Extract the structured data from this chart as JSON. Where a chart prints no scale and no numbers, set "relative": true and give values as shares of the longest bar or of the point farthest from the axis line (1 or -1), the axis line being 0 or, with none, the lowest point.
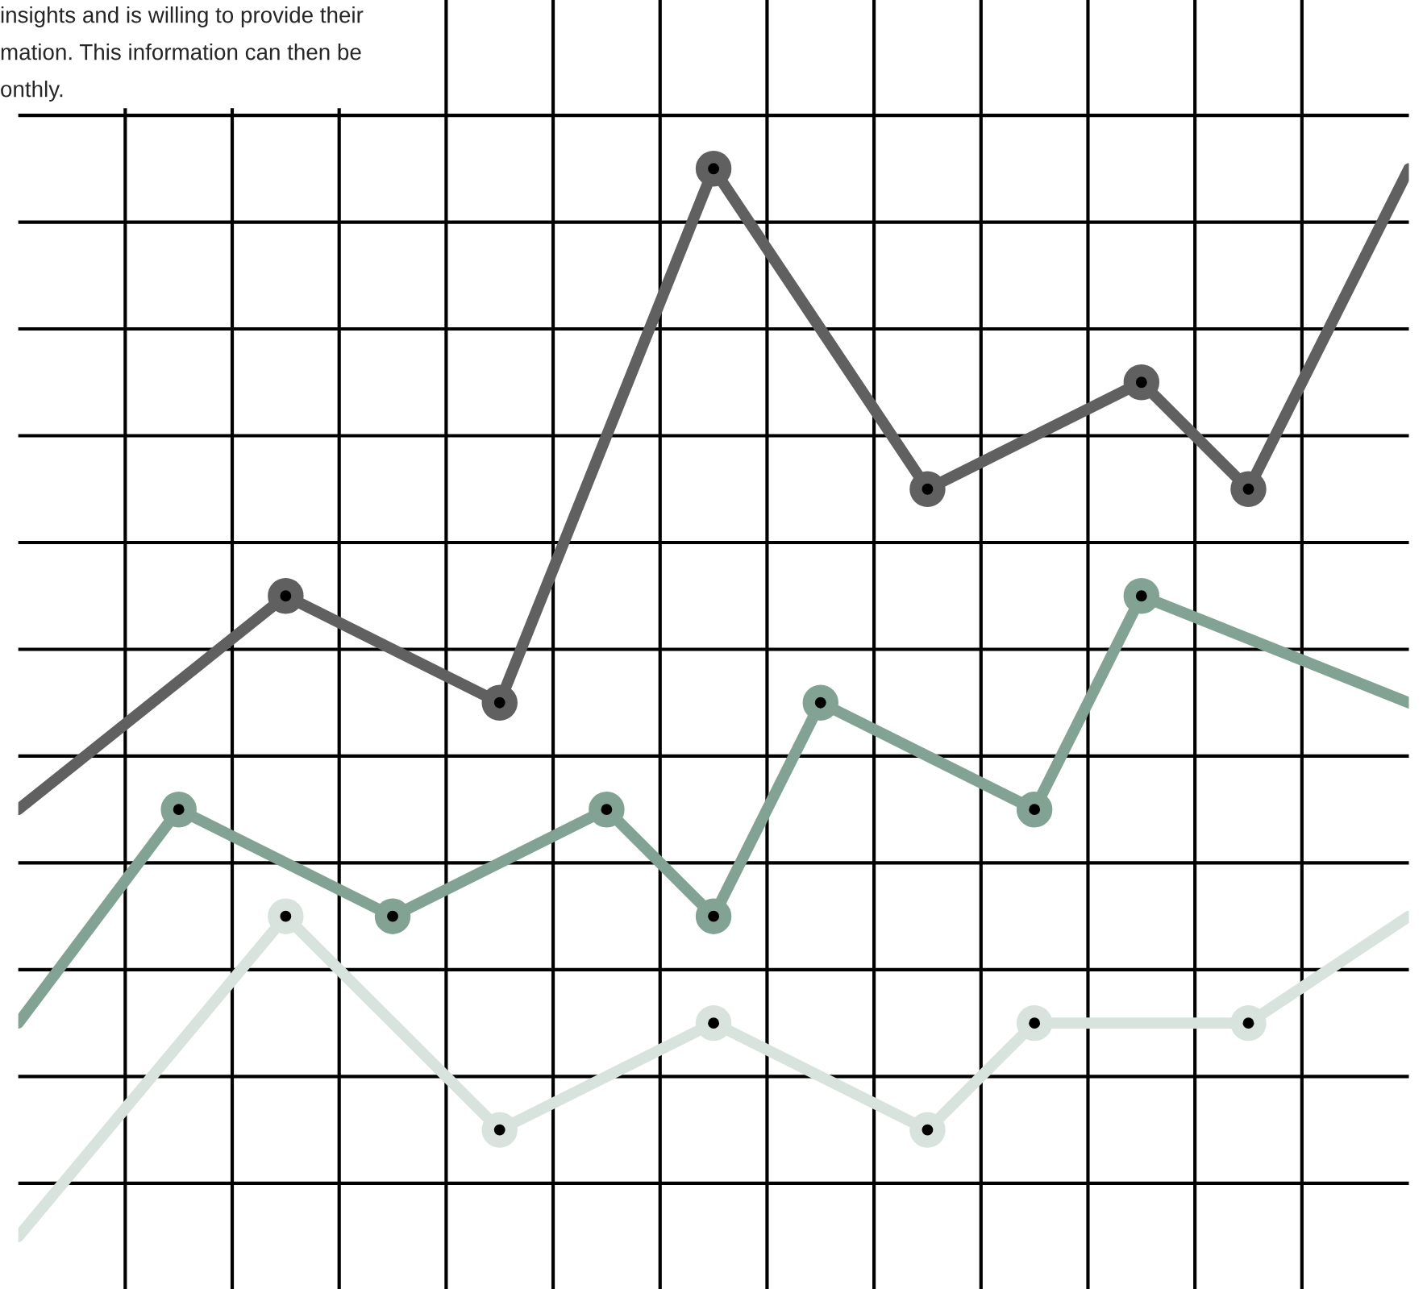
{
  "chart_data": {
    "type": "line",
    "relative": true,
    "grid": true,
    "marker": "circle",
    "line_style": "solid",
    "categories": [
      null,
      null,
      null,
      null,
      null,
      null,
      null,
      null,
      null,
      null,
      null,
      null,
      null,
      null,
      null,
      null,
      null,
      null,
      null,
      null,
      null,
      null,
      null,
      null,
      null,
      null,
      null
    ],
    "annotations": [
      "insights and is willing to provide their\nmation. This information can then be\nonthly."
    ],
    "series": [
      {
        "color": "#606060",
        "values": [
          0.4,
          null,
          null,
          null,
          null,
          0.6,
          null,
          null,
          null,
          0.5,
          null,
          null,
          null,
          1.0,
          null,
          null,
          null,
          0.7,
          null,
          null,
          null,
          0.8,
          null,
          0.7,
          null,
          null,
          1.0
        ]
      },
      {
        "color": "#82a394",
        "values": [
          0.2,
          null,
          null,
          0.4,
          null,
          null,
          null,
          0.3,
          null,
          null,
          null,
          0.4,
          null,
          0.3,
          null,
          0.5,
          null,
          null,
          null,
          0.4,
          null,
          0.6,
          null,
          null,
          null,
          null,
          0.5
        ]
      },
      {
        "color": "#d8e3dd",
        "values": [
          0.0,
          null,
          null,
          null,
          null,
          0.3,
          null,
          null,
          null,
          0.1,
          null,
          null,
          null,
          0.2,
          null,
          null,
          null,
          0.1,
          null,
          0.2,
          null,
          null,
          null,
          0.2,
          null,
          null,
          0.3
        ]
      }
    ]
  }
}
